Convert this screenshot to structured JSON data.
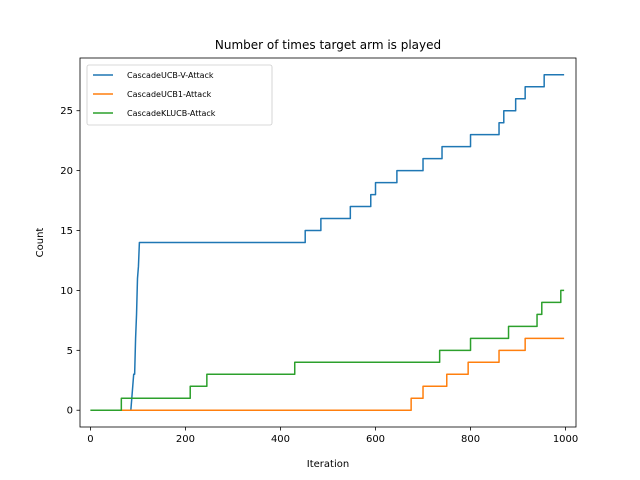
{
  "chart_data": {
    "type": "line",
    "title": "Number of times target arm is played",
    "xlabel": "Iteration",
    "ylabel": "Count",
    "xlim": [
      -22,
      1022
    ],
    "ylim": [
      -1.4,
      29.4
    ],
    "xticks": [
      0,
      200,
      400,
      600,
      800,
      1000
    ],
    "yticks": [
      0,
      5,
      10,
      15,
      20,
      25
    ],
    "grid": false,
    "legend_position": "upper-left",
    "series": [
      {
        "name": "CascadeUCB-V-Attack",
        "color": "#1f77b4",
        "points": [
          [
            0,
            0
          ],
          [
            85,
            0
          ],
          [
            87,
            1
          ],
          [
            89,
            2
          ],
          [
            91,
            3
          ],
          [
            93,
            3
          ],
          [
            95,
            6
          ],
          [
            97,
            8
          ],
          [
            99,
            11
          ],
          [
            101,
            12
          ],
          [
            103,
            14
          ],
          [
            452,
            14
          ],
          [
            452,
            15
          ],
          [
            485,
            15
          ],
          [
            485,
            16
          ],
          [
            547,
            16
          ],
          [
            547,
            17
          ],
          [
            590,
            17
          ],
          [
            590,
            18
          ],
          [
            600,
            18
          ],
          [
            600,
            19
          ],
          [
            645,
            19
          ],
          [
            645,
            20
          ],
          [
            700,
            20
          ],
          [
            700,
            21
          ],
          [
            740,
            21
          ],
          [
            740,
            22
          ],
          [
            800,
            22
          ],
          [
            800,
            23
          ],
          [
            860,
            23
          ],
          [
            860,
            24
          ],
          [
            870,
            24
          ],
          [
            870,
            25
          ],
          [
            895,
            25
          ],
          [
            895,
            26
          ],
          [
            915,
            26
          ],
          [
            915,
            27
          ],
          [
            955,
            27
          ],
          [
            955,
            28
          ],
          [
            997,
            28
          ]
        ]
      },
      {
        "name": "CascadeUCB1-Attack",
        "color": "#ff7f0e",
        "points": [
          [
            0,
            0
          ],
          [
            675,
            0
          ],
          [
            675,
            1
          ],
          [
            700,
            1
          ],
          [
            700,
            2
          ],
          [
            750,
            2
          ],
          [
            750,
            3
          ],
          [
            795,
            3
          ],
          [
            795,
            4
          ],
          [
            860,
            4
          ],
          [
            860,
            5
          ],
          [
            915,
            5
          ],
          [
            915,
            6
          ],
          [
            997,
            6
          ]
        ]
      },
      {
        "name": "CascadeKLUCB-Attack",
        "color": "#2ca02c",
        "points": [
          [
            0,
            0
          ],
          [
            65,
            0
          ],
          [
            65,
            1
          ],
          [
            210,
            1
          ],
          [
            210,
            2
          ],
          [
            245,
            2
          ],
          [
            245,
            3
          ],
          [
            430,
            3
          ],
          [
            430,
            4
          ],
          [
            735,
            4
          ],
          [
            735,
            5
          ],
          [
            800,
            5
          ],
          [
            800,
            6
          ],
          [
            880,
            6
          ],
          [
            880,
            7
          ],
          [
            940,
            7
          ],
          [
            940,
            8
          ],
          [
            950,
            8
          ],
          [
            950,
            9
          ],
          [
            990,
            9
          ],
          [
            990,
            10
          ],
          [
            997,
            10
          ]
        ]
      }
    ]
  }
}
